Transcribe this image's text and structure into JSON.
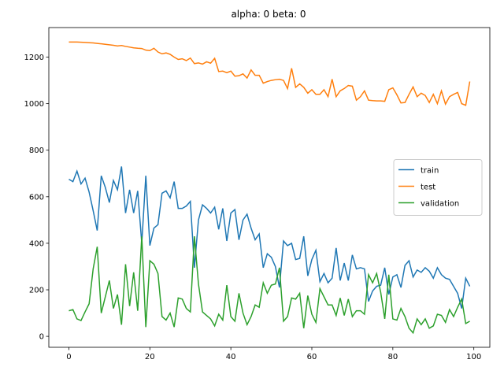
{
  "chart_data": {
    "type": "line",
    "title": "alpha: 0 beta: 0",
    "x": [
      0,
      1,
      2,
      3,
      4,
      5,
      6,
      7,
      8,
      9,
      10,
      11,
      12,
      13,
      14,
      15,
      16,
      17,
      18,
      19,
      20,
      21,
      22,
      23,
      24,
      25,
      26,
      27,
      28,
      29,
      30,
      31,
      32,
      33,
      34,
      35,
      36,
      37,
      38,
      39,
      40,
      41,
      42,
      43,
      44,
      45,
      46,
      47,
      48,
      49,
      50,
      51,
      52,
      53,
      54,
      55,
      56,
      57,
      58,
      59,
      60,
      61,
      62,
      63,
      64,
      65,
      66,
      67,
      68,
      69,
      70,
      71,
      72,
      73,
      74,
      75,
      76,
      77,
      78,
      79,
      80,
      81,
      82,
      83,
      84,
      85,
      86,
      87,
      88,
      89,
      90,
      91,
      92,
      93,
      94,
      95,
      96,
      97,
      98,
      99
    ],
    "series": [
      {
        "name": "train",
        "color": "#1f77b4",
        "values": [
          675,
          665,
          710,
          655,
          680,
          620,
          540,
          455,
          690,
          640,
          575,
          670,
          630,
          730,
          530,
          630,
          530,
          625,
          400,
          690,
          390,
          465,
          480,
          615,
          625,
          595,
          665,
          550,
          550,
          560,
          580,
          295,
          500,
          565,
          550,
          530,
          555,
          460,
          550,
          410,
          530,
          545,
          415,
          500,
          525,
          465,
          415,
          440,
          295,
          355,
          340,
          300,
          210,
          410,
          390,
          400,
          330,
          335,
          430,
          260,
          330,
          370,
          235,
          270,
          230,
          250,
          380,
          240,
          315,
          240,
          350,
          290,
          295,
          290,
          150,
          195,
          215,
          220,
          295,
          180,
          255,
          265,
          210,
          305,
          325,
          255,
          285,
          275,
          295,
          280,
          250,
          295,
          265,
          250,
          245,
          215,
          185,
          120,
          250,
          215
        ]
      },
      {
        "name": "test",
        "color": "#ff7f0e",
        "values": [
          1265,
          1265,
          1265,
          1264,
          1263,
          1262,
          1261,
          1259,
          1257,
          1255,
          1253,
          1251,
          1248,
          1250,
          1246,
          1243,
          1240,
          1238,
          1237,
          1230,
          1228,
          1238,
          1222,
          1214,
          1218,
          1212,
          1200,
          1190,
          1193,
          1185,
          1196,
          1172,
          1175,
          1170,
          1180,
          1174,
          1195,
          1138,
          1140,
          1133,
          1140,
          1118,
          1120,
          1128,
          1110,
          1145,
          1122,
          1122,
          1088,
          1095,
          1100,
          1103,
          1105,
          1100,
          1065,
          1152,
          1070,
          1085,
          1070,
          1045,
          1060,
          1040,
          1040,
          1060,
          1030,
          1105,
          1030,
          1055,
          1065,
          1078,
          1075,
          1015,
          1030,
          1055,
          1015,
          1013,
          1012,
          1012,
          1010,
          1060,
          1068,
          1038,
          1003,
          1005,
          1040,
          1072,
          1030,
          1045,
          1035,
          1005,
          1040,
          1000,
          1055,
          998,
          1030,
          1040,
          1048,
          1000,
          993,
          1095
        ]
      },
      {
        "name": "validation",
        "color": "#2ca02c",
        "values": [
          110,
          115,
          75,
          68,
          105,
          140,
          290,
          385,
          100,
          170,
          240,
          120,
          180,
          50,
          310,
          130,
          275,
          110,
          430,
          40,
          325,
          310,
          270,
          85,
          70,
          100,
          40,
          165,
          160,
          120,
          105,
          430,
          225,
          105,
          90,
          75,
          45,
          95,
          70,
          220,
          85,
          65,
          185,
          100,
          50,
          85,
          135,
          125,
          230,
          185,
          220,
          225,
          295,
          65,
          85,
          165,
          160,
          185,
          35,
          175,
          95,
          60,
          205,
          170,
          135,
          135,
          90,
          165,
          90,
          160,
          85,
          110,
          110,
          95,
          265,
          230,
          270,
          190,
          75,
          265,
          75,
          70,
          120,
          85,
          35,
          15,
          75,
          50,
          75,
          35,
          45,
          95,
          90,
          60,
          115,
          85,
          125,
          160,
          55,
          65
        ]
      }
    ],
    "xlim": [
      -4.95,
      103.95
    ],
    "ylim": [
      -47,
      1327
    ],
    "xticks": [
      0,
      20,
      40,
      60,
      80,
      100
    ],
    "yticks": [
      0,
      200,
      400,
      600,
      800,
      1000,
      1200
    ],
    "legend": "center right"
  }
}
